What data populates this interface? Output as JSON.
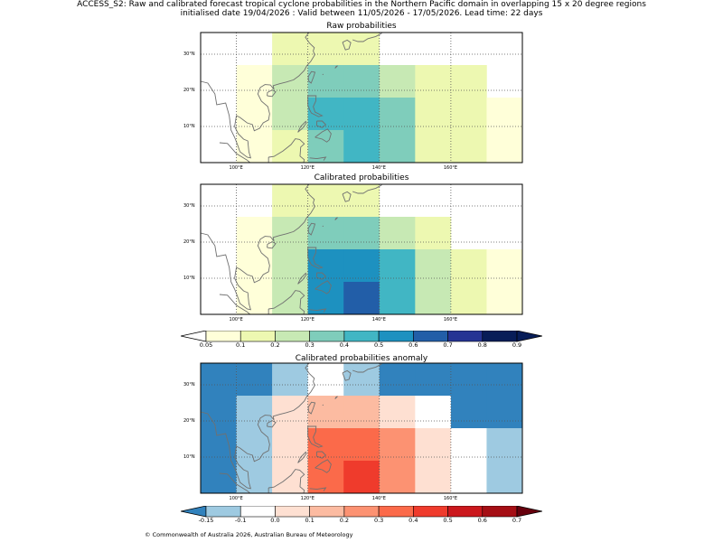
{
  "header": {
    "title_line1": "ACCESS_S2: Raw and calibrated forecast tropical cyclone probabilities in the Northern Pacific domain in overlapping 15 x 20 degree regions",
    "title_line2": "initialised date 19/04/2026 :  Valid between 11/05/2026 - 17/05/2026. Lead time: 22 days"
  },
  "panels": {
    "raw": {
      "title": "Raw probabilities"
    },
    "calibrated": {
      "title": "Calibrated probabilities"
    },
    "anomaly": {
      "title": "Calibrated probabilities anomaly"
    }
  },
  "axes": {
    "lon_ticks": [
      "100°E",
      "120°E",
      "140°E",
      "160°E"
    ],
    "lat_ticks": [
      "30°N",
      "20°N",
      "10°N"
    ]
  },
  "colorbars": {
    "probability": {
      "labels": [
        "0.05",
        "0.1",
        "0.2",
        "0.3",
        "0.4",
        "0.5",
        "0.6",
        "0.7",
        "0.8",
        "0.9"
      ],
      "colors": [
        "#ffffd9",
        "#edf8b1",
        "#c7e9b4",
        "#7fcdbb",
        "#41b6c4",
        "#1d91c0",
        "#225ea8",
        "#253494",
        "#081d58"
      ],
      "under_color": "#ffffff",
      "over_color": "#081d58"
    },
    "anomaly": {
      "labels": [
        "-0.15",
        "-0.1",
        "0.0",
        "0.1",
        "0.2",
        "0.3",
        "0.4",
        "0.5",
        "0.6",
        "0.7"
      ],
      "colors": [
        "#9ecae1",
        "#ffffff",
        "#fee0d2",
        "#fcbba1",
        "#fc9272",
        "#fb6a4a",
        "#ef3b2c",
        "#cb181d",
        "#a50f15"
      ],
      "under_color": "#3182bd",
      "over_color": "#67000d"
    }
  },
  "map_data": {
    "lon_range": [
      90,
      180
    ],
    "lat_range": [
      0,
      36
    ],
    "raw_grid": [
      [
        null,
        null,
        0.1,
        0.15,
        0.1,
        null,
        null,
        null,
        null
      ],
      [
        null,
        0.08,
        0.2,
        0.35,
        0.35,
        0.25,
        0.15,
        0.1,
        null
      ],
      [
        null,
        0.08,
        0.25,
        0.45,
        0.45,
        0.35,
        0.15,
        0.15,
        0.08
      ],
      [
        null,
        0.08,
        0.1,
        0.35,
        0.45,
        0.35,
        0.15,
        0.15,
        0.08
      ]
    ],
    "calibrated_grid": [
      [
        null,
        null,
        0.1,
        0.15,
        0.1,
        null,
        null,
        null,
        null
      ],
      [
        null,
        0.08,
        0.25,
        0.35,
        0.35,
        0.25,
        0.15,
        null,
        null
      ],
      [
        null,
        0.08,
        0.25,
        0.55,
        0.55,
        0.45,
        0.25,
        0.15,
        0.08
      ],
      [
        null,
        0.08,
        0.25,
        0.55,
        0.65,
        0.45,
        0.25,
        0.15,
        0.08
      ]
    ],
    "anomaly_grid": [
      [
        -0.2,
        -0.2,
        -0.12,
        -0.05,
        -0.12,
        -0.2,
        -0.2,
        -0.2,
        -0.2
      ],
      [
        -0.2,
        -0.12,
        0.05,
        0.15,
        0.15,
        0.05,
        -0.05,
        -0.2,
        -0.2
      ],
      [
        -0.2,
        -0.12,
        0.05,
        0.35,
        0.35,
        0.25,
        0.05,
        -0.05,
        -0.12
      ],
      [
        -0.2,
        -0.12,
        0.05,
        0.35,
        0.45,
        0.25,
        0.05,
        -0.05,
        -0.12
      ]
    ]
  },
  "footer": {
    "copyright": "© Commonwealth of Australia 2026, Australian Bureau of Meteorology"
  }
}
